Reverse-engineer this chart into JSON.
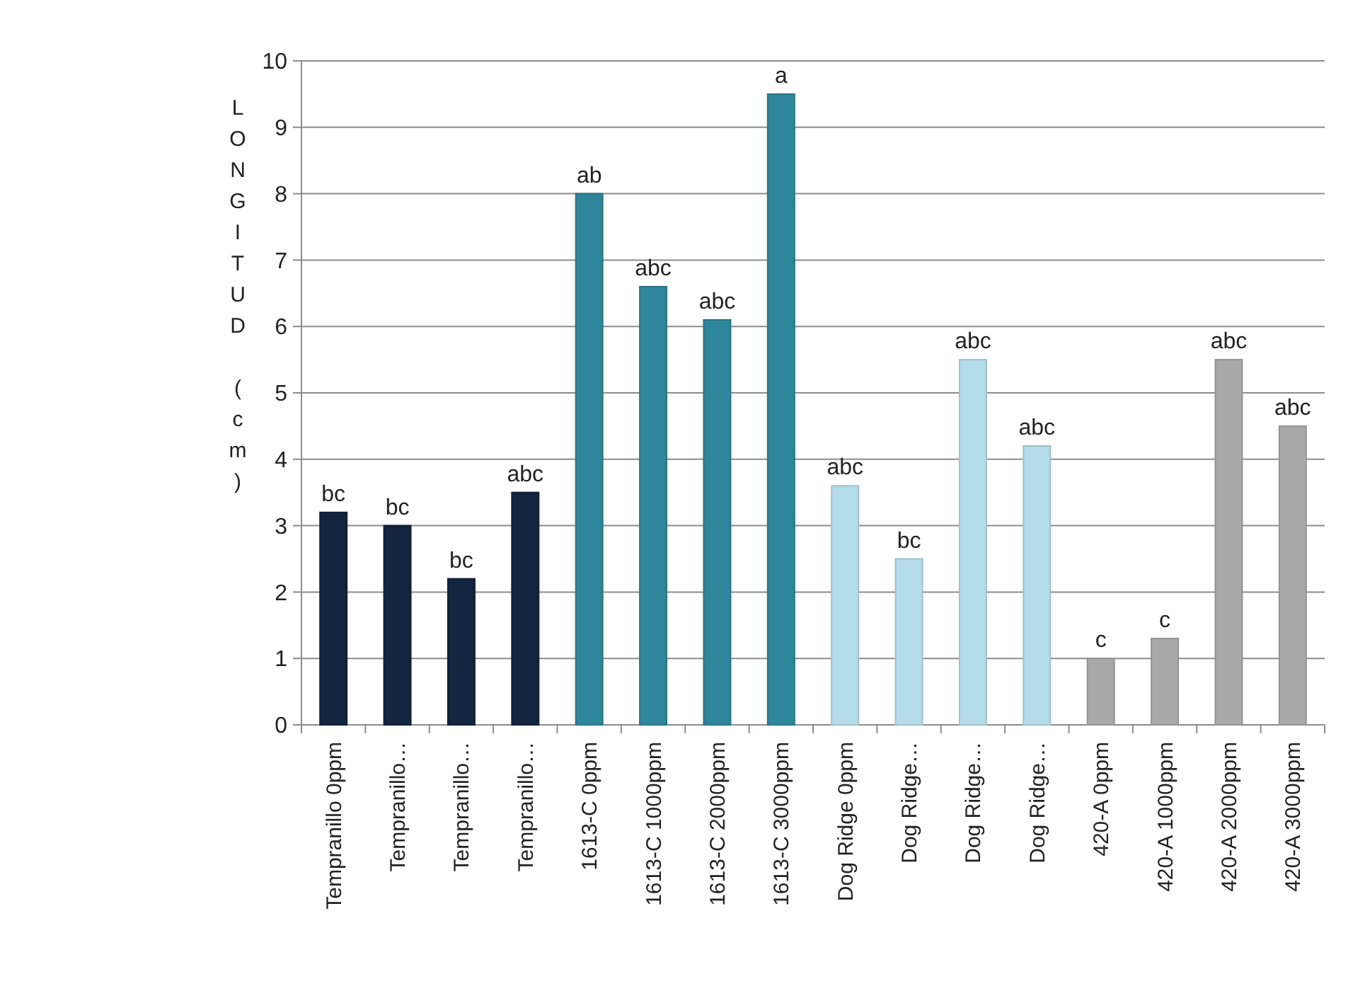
{
  "chart_data": {
    "type": "bar",
    "ylabel": "LONGITUD (cm)",
    "categories": [
      "Tempranillo 0ppm",
      "Tempranillo…",
      "Tempranillo…",
      "Tempranillo…",
      "1613-C 0ppm",
      "1613-C 1000ppm",
      "1613-C 2000ppm",
      "1613-C 3000ppm",
      "Dog Ridge 0ppm",
      "Dog Ridge…",
      "Dog Ridge…",
      "Dog Ridge…",
      "420-A 0ppm",
      "420-A 1000ppm",
      "420-A 2000ppm",
      "420-A 3000ppm"
    ],
    "values": [
      3.2,
      3.0,
      2.2,
      3.5,
      8.0,
      6.6,
      6.1,
      9.5,
      3.6,
      2.5,
      5.5,
      4.2,
      1.0,
      1.3,
      5.5,
      4.5
    ],
    "colors": [
      "#12243f",
      "#12243f",
      "#12243f",
      "#12243f",
      "#2e869b",
      "#2e869b",
      "#2e869b",
      "#2e869b",
      "#b5dde9",
      "#b5dde9",
      "#b5dde9",
      "#b5dde9",
      "#a9a9a9",
      "#a9a9a9",
      "#a9a9a9",
      "#a9a9a9"
    ],
    "value_labels": [
      "bc",
      "bc",
      "bc",
      "abc",
      "ab",
      "abc",
      "abc",
      "a",
      "abc",
      "bc",
      "abc",
      "abc",
      "c",
      "c",
      "abc",
      "abc"
    ],
    "ylim": [
      0,
      10
    ],
    "yticks": [
      0,
      1,
      2,
      3,
      4,
      5,
      6,
      7,
      8,
      9,
      10
    ],
    "grid": "y"
  }
}
